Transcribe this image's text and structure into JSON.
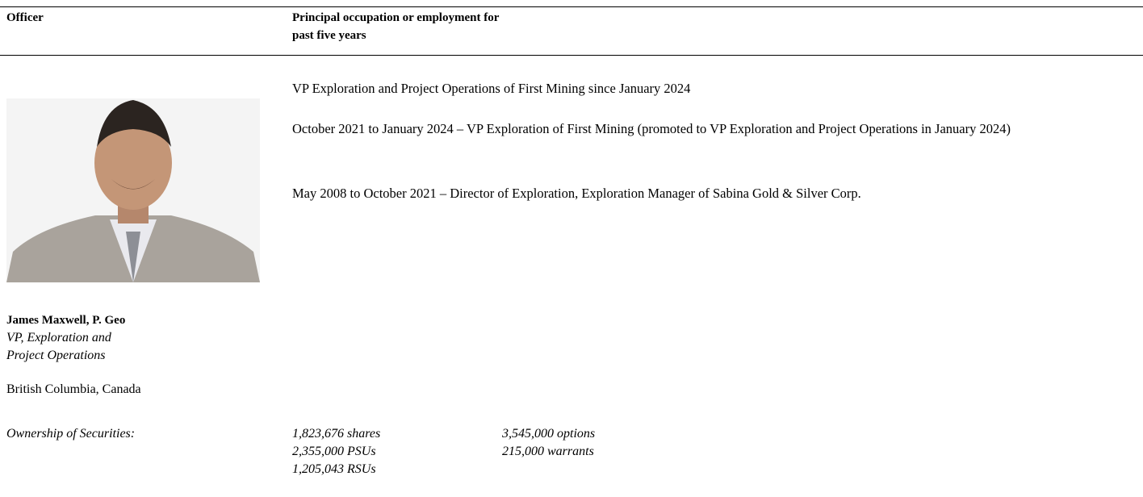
{
  "header": {
    "officer": "Officer",
    "occupation": [
      "Principal occupation or employment for",
      "past five years"
    ]
  },
  "officer": {
    "name": "James Maxwell, P. Geo",
    "title": [
      "VP, Exploration and",
      "Project Operations"
    ],
    "location": "British Columbia, Canada"
  },
  "occupation": [
    "VP Exploration and Project Operations of First Mining since January 2024",
    "October 2021 to January 2024 – VP Exploration of First Mining (promoted to VP Exploration and Project Operations in January 2024)",
    "May 2008 to October 2021 – Director of Exploration, Exploration Manager of Sabina Gold & Silver Corp."
  ],
  "ownership": {
    "label": "Ownership of Securities:",
    "column1": [
      "1,823,676 shares",
      "2,355,000 PSUs",
      "1,205,043 RSUs"
    ],
    "column2": [
      "3,545,000 options",
      "215,000 warrants"
    ]
  }
}
